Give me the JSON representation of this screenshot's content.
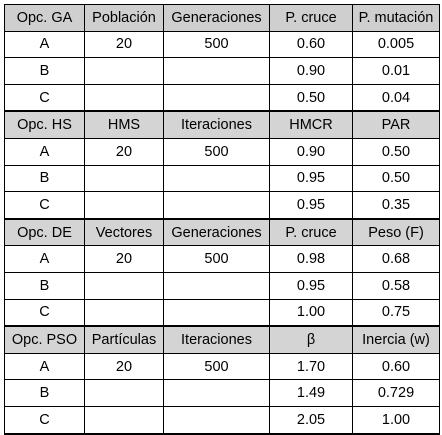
{
  "groups": [
    {
      "header": [
        "Opc. GA",
        "Población",
        "Generaciones",
        "P. cruce",
        "P. mutación"
      ],
      "rows": [
        [
          "A",
          "20",
          "500",
          "0.60",
          "0.005"
        ],
        [
          "B",
          "",
          "",
          "0.90",
          "0.01"
        ],
        [
          "C",
          "",
          "",
          "0.50",
          "0.04"
        ]
      ]
    },
    {
      "header": [
        "Opc. HS",
        "HMS",
        "Iteraciones",
        "HMCR",
        "PAR"
      ],
      "rows": [
        [
          "A",
          "20",
          "500",
          "0.90",
          "0.50"
        ],
        [
          "B",
          "",
          "",
          "0.95",
          "0.50"
        ],
        [
          "C",
          "",
          "",
          "0.95",
          "0.35"
        ]
      ]
    },
    {
      "header": [
        "Opc. DE",
        "Vectores",
        "Generaciones",
        "P. cruce",
        "Peso (F)"
      ],
      "rows": [
        [
          "A",
          "20",
          "500",
          "0.98",
          "0.68"
        ],
        [
          "B",
          "",
          "",
          "0.95",
          "0.58"
        ],
        [
          "C",
          "",
          "",
          "1.00",
          "0.75"
        ]
      ]
    },
    {
      "header": [
        "Opc. PSO",
        "Partículas",
        "Iteraciones",
        "β",
        "Inercia (w)"
      ],
      "rows": [
        [
          "A",
          "20",
          "500",
          "1.70",
          "0.60"
        ],
        [
          "B",
          "",
          "",
          "1.49",
          "0.729"
        ],
        [
          "C",
          "",
          "",
          "2.05",
          "1.00"
        ]
      ]
    }
  ]
}
